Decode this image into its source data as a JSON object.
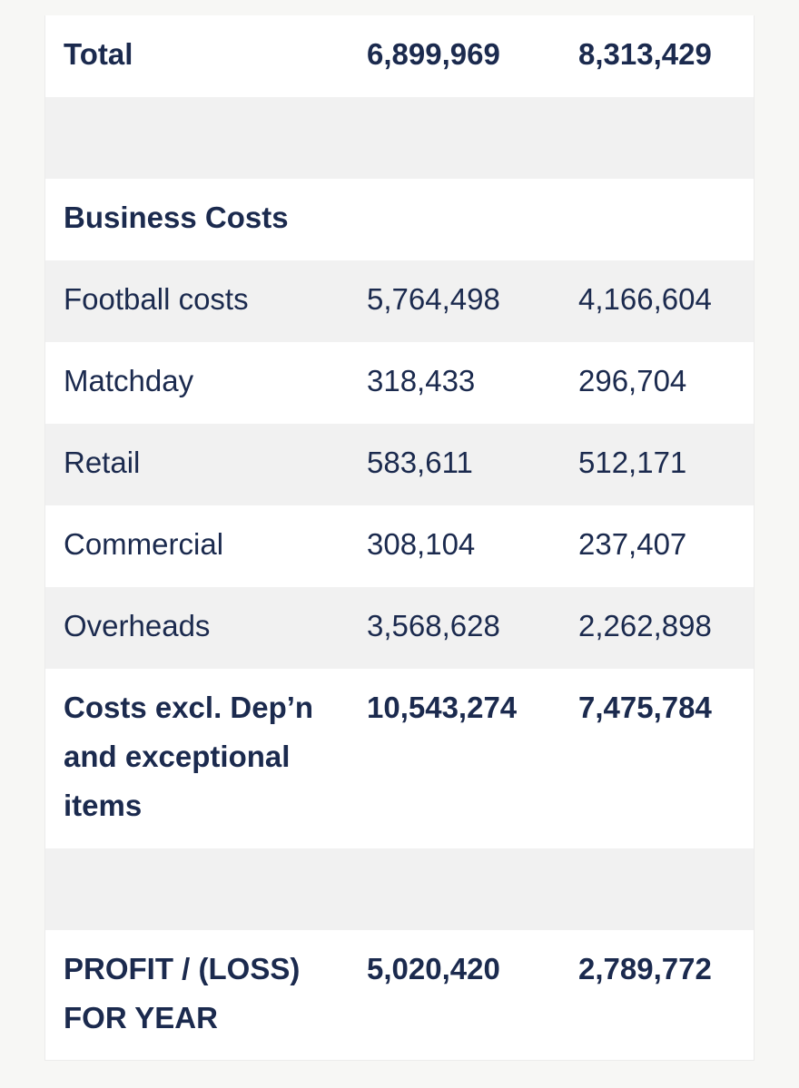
{
  "table": {
    "total": {
      "label": "Total",
      "a": "6,899,969",
      "b": "8,313,429"
    },
    "business_costs_heading": "Business Costs",
    "cost_rows": [
      {
        "label": "Football costs",
        "a": "5,764,498",
        "b": "4,166,604"
      },
      {
        "label": "Matchday",
        "a": "318,433",
        "b": "296,704"
      },
      {
        "label": "Retail",
        "a": "583,611",
        "b": "512,171"
      },
      {
        "label": "Commercial",
        "a": "308,104",
        "b": "237,407"
      },
      {
        "label": "Overheads",
        "a": "3,568,628",
        "b": "2,262,898"
      }
    ],
    "costs_total": {
      "label": "Costs excl. Dep’n and exceptional items",
      "a": "10,543,274",
      "b": "7,475,784"
    },
    "profit": {
      "label": "PROFIT / (LOSS) FOR YEAR",
      "a": "5,020,420",
      "b": "2,789,772"
    }
  }
}
